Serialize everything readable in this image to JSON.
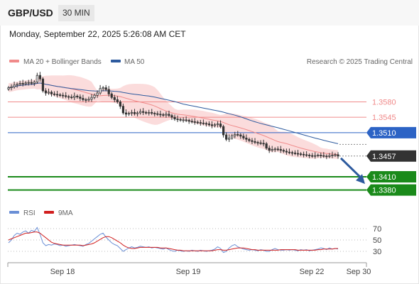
{
  "header": {
    "symbol": "GBP/USD",
    "timeframe": "30 MIN"
  },
  "subheader": {
    "datetime": "Monday, September 22, 2025 5:26:08 AM CET"
  },
  "legend": {
    "bollinger_label": "MA 20 + Bollinger Bands",
    "ma50_label": "MA 50",
    "copyright": "Research © 2025 Trading Central",
    "rsi_label": "RSI",
    "rsi_ma_label": "9MA"
  },
  "colors": {
    "bollinger": "#f08a8a",
    "band_fill": "#fbdcdc",
    "ma50": "#2d5a9e",
    "resistance": "#f08a8a",
    "pivot": "#2c63c5",
    "support": "#1a8a1a",
    "price": "#333333",
    "rsi": "#6a8fd6",
    "rsi_ma": "#d11f1f",
    "arrow": "#2d5a9e"
  },
  "chart_data": [
    {
      "type": "candlestick",
      "x_axis": {
        "tick_labels": [
          "Sep 18",
          "Sep 19",
          "Sep 22",
          "Sep 30"
        ]
      },
      "y_range": [
        1.336,
        1.365
      ],
      "levels": [
        {
          "label": "1.3580",
          "value": 1.358,
          "kind": "resistance"
        },
        {
          "label": "1.3545",
          "value": 1.3545,
          "kind": "resistance"
        },
        {
          "label": "1.3510",
          "value": 1.351,
          "kind": "pivot"
        },
        {
          "label": "1.3457",
          "value": 1.3457,
          "kind": "last"
        },
        {
          "label": "1.3410",
          "value": 1.341,
          "kind": "support"
        },
        {
          "label": "1.3380",
          "value": 1.338,
          "kind": "support"
        }
      ],
      "ma50_end": 1.3485,
      "forecast": {
        "from": 1.3457,
        "to": 1.3405
      },
      "close_series": [
        1.3612,
        1.3614,
        1.3618,
        1.362,
        1.3622,
        1.3621,
        1.3623,
        1.3624,
        1.3622,
        1.3625,
        1.364,
        1.3632,
        1.3605,
        1.36,
        1.3602,
        1.3598,
        1.3597,
        1.3596,
        1.3595,
        1.3594,
        1.3592,
        1.3591,
        1.359,
        1.3593,
        1.3591,
        1.3588,
        1.3585,
        1.3584,
        1.3586,
        1.359,
        1.3595,
        1.36,
        1.361,
        1.3612,
        1.3608,
        1.3598,
        1.359,
        1.3585,
        1.358,
        1.357,
        1.3555,
        1.3552,
        1.3554,
        1.3556,
        1.3553,
        1.3555,
        1.3558,
        1.3556,
        1.3555,
        1.3556,
        1.3554,
        1.3553,
        1.3552,
        1.3551,
        1.355,
        1.3552,
        1.3549,
        1.3545,
        1.3541,
        1.354,
        1.3539,
        1.3539,
        1.3538,
        1.3536,
        1.3535,
        1.3534,
        1.3533,
        1.3532,
        1.3531,
        1.353,
        1.3528,
        1.3526,
        1.3528,
        1.353,
        1.3524,
        1.3505,
        1.3495,
        1.3498,
        1.3503,
        1.3506,
        1.3505,
        1.3502,
        1.3498,
        1.3495,
        1.3492,
        1.349,
        1.3488,
        1.3487,
        1.3486,
        1.3485,
        1.3475,
        1.347,
        1.3472,
        1.3473,
        1.3472,
        1.347,
        1.3468,
        1.3466,
        1.3465,
        1.3464,
        1.3463,
        1.3462,
        1.3461,
        1.346,
        1.3459,
        1.3458,
        1.3457,
        1.3458,
        1.3459,
        1.3458,
        1.3457,
        1.3456,
        1.3458,
        1.3459,
        1.346,
        1.3457
      ]
    },
    {
      "type": "line",
      "name": "RSI",
      "y_range": [
        15,
        85
      ],
      "tick_labels": [
        "70",
        "50",
        "30"
      ],
      "rsi_series": [
        45,
        50,
        58,
        62,
        60,
        64,
        66,
        62,
        67,
        65,
        72,
        60,
        45,
        40,
        42,
        41,
        43,
        42,
        40,
        41,
        39,
        40,
        41,
        42,
        41,
        40,
        39,
        42,
        44,
        48,
        52,
        56,
        60,
        62,
        55,
        50,
        45,
        42,
        40,
        35,
        30,
        33,
        36,
        38,
        36,
        37,
        39,
        38,
        37,
        38,
        36,
        37,
        36,
        35,
        34,
        36,
        33,
        31,
        30,
        32,
        31,
        30,
        31,
        30,
        32,
        31,
        30,
        32,
        31,
        30,
        31,
        32,
        34,
        38,
        35,
        28,
        30,
        36,
        40,
        42,
        38,
        36,
        34,
        33,
        32,
        33,
        32,
        31,
        33,
        32,
        30,
        30,
        33,
        35,
        33,
        32,
        32,
        33,
        32,
        33,
        32,
        31,
        33,
        32,
        33,
        31,
        32,
        33,
        34,
        36,
        35,
        33,
        36,
        34,
        35,
        34
      ],
      "rsi_ma_series": [
        50,
        52,
        54,
        56,
        58,
        60,
        62,
        62,
        63,
        64,
        64,
        62,
        58,
        54,
        50,
        46,
        44,
        43,
        42,
        41,
        41,
        41,
        41,
        41,
        41,
        41,
        40,
        41,
        42,
        43,
        45,
        48,
        51,
        54,
        56,
        56,
        54,
        51,
        48,
        45,
        41,
        38,
        36,
        35,
        35,
        36,
        37,
        37,
        37,
        37,
        37,
        37,
        37,
        36,
        36,
        36,
        35,
        34,
        33,
        32,
        32,
        31,
        31,
        31,
        31,
        31,
        31,
        31,
        31,
        31,
        31,
        31,
        32,
        33,
        33,
        32,
        32,
        33,
        34,
        35,
        36,
        36,
        36,
        35,
        34,
        33,
        33,
        32,
        32,
        32,
        32,
        32,
        32,
        32,
        32,
        33,
        33,
        33,
        33,
        33,
        33,
        32,
        32,
        32,
        32,
        32,
        32,
        32,
        33,
        33,
        34,
        34,
        34,
        34,
        35,
        35
      ]
    }
  ]
}
